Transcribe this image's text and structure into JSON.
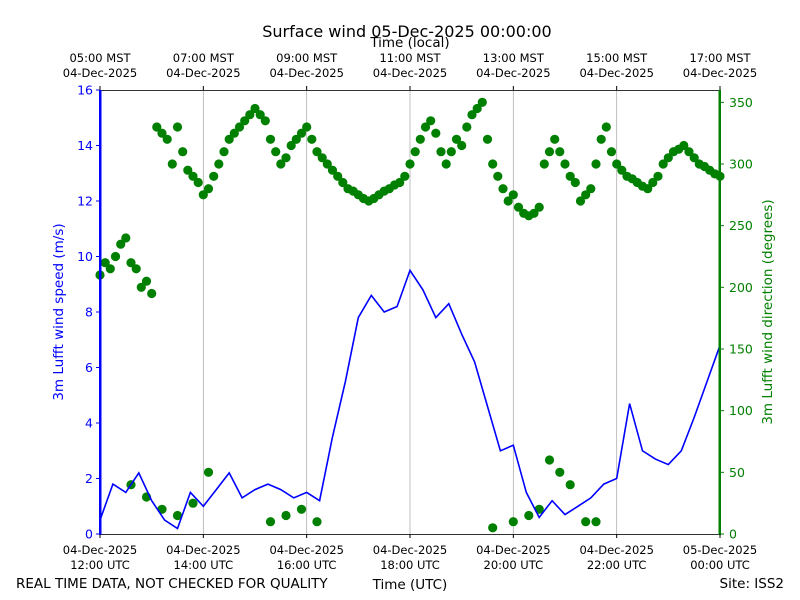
{
  "chart_data": {
    "type": "line+scatter",
    "title": "Surface wind 05-Dec-2025 00:00:00",
    "top_axis_label": "Time (local)",
    "xlabel": "Time (UTC)",
    "ylabel_left": "3m Lufft wind speed (m/s)",
    "ylabel_right": "3m Lufft wind direction (degrees)",
    "footer_left": "REAL TIME DATA, NOT CHECKED FOR QUALITY",
    "footer_right": "Site: ISS2",
    "x_range_hours": [
      0,
      12
    ],
    "ylim_left": [
      0,
      16
    ],
    "ylim_right": [
      0,
      360
    ],
    "left_ticks": [
      "0",
      "2",
      "4",
      "6",
      "8",
      "10",
      "12",
      "14",
      "16"
    ],
    "right_ticks": [
      "0",
      "50",
      "100",
      "150",
      "200",
      "250",
      "300",
      "350"
    ],
    "bottom_ticks": [
      {
        "h": 0,
        "date": "04-Dec-2025",
        "time": "12:00 UTC"
      },
      {
        "h": 2,
        "date": "04-Dec-2025",
        "time": "14:00 UTC"
      },
      {
        "h": 4,
        "date": "04-Dec-2025",
        "time": "16:00 UTC"
      },
      {
        "h": 6,
        "date": "04-Dec-2025",
        "time": "18:00 UTC"
      },
      {
        "h": 8,
        "date": "04-Dec-2025",
        "time": "20:00 UTC"
      },
      {
        "h": 10,
        "date": "04-Dec-2025",
        "time": "22:00 UTC"
      },
      {
        "h": 12,
        "date": "05-Dec-2025",
        "time": "00:00 UTC"
      }
    ],
    "top_ticks": [
      {
        "h": 0,
        "time": "05:00 MST",
        "date": "04-Dec-2025"
      },
      {
        "h": 2,
        "time": "07:00 MST",
        "date": "04-Dec-2025"
      },
      {
        "h": 4,
        "time": "09:00 MST",
        "date": "04-Dec-2025"
      },
      {
        "h": 6,
        "time": "11:00 MST",
        "date": "04-Dec-2025"
      },
      {
        "h": 8,
        "time": "13:00 MST",
        "date": "04-Dec-2025"
      },
      {
        "h": 10,
        "time": "15:00 MST",
        "date": "04-Dec-2025"
      },
      {
        "h": 12,
        "time": "17:00 MST",
        "date": "04-Dec-2025"
      }
    ],
    "colors": {
      "speed": "#0000ff",
      "direction": "#008000",
      "grid": "#b0b0b0"
    },
    "series": [
      {
        "name": "3m Lufft wind speed (m/s)",
        "kind": "line",
        "x_hours": [
          0.0,
          0.25,
          0.5,
          0.75,
          1.0,
          1.25,
          1.5,
          1.75,
          2.0,
          2.25,
          2.5,
          2.75,
          3.0,
          3.25,
          3.5,
          3.75,
          4.0,
          4.25,
          4.5,
          4.75,
          5.0,
          5.25,
          5.5,
          5.75,
          6.0,
          6.25,
          6.5,
          6.75,
          7.0,
          7.25,
          7.5,
          7.75,
          8.0,
          8.25,
          8.5,
          8.75,
          9.0,
          9.25,
          9.5,
          9.75,
          10.0,
          10.25,
          10.5,
          10.75,
          11.0,
          11.25,
          11.5,
          11.75,
          12.0
        ],
        "values": [
          0.5,
          1.8,
          1.5,
          2.2,
          1.2,
          0.5,
          0.2,
          1.5,
          1.0,
          1.6,
          2.2,
          1.3,
          1.6,
          1.8,
          1.6,
          1.3,
          1.5,
          1.2,
          3.5,
          5.5,
          7.8,
          8.6,
          8.0,
          8.2,
          9.5,
          8.8,
          7.8,
          8.3,
          7.2,
          6.2,
          4.6,
          3.0,
          3.2,
          1.5,
          0.6,
          1.2,
          0.7,
          1.0,
          1.3,
          1.8,
          2.0,
          4.7,
          3.0,
          2.7,
          2.5,
          3.0,
          4.2,
          5.5,
          6.8
        ]
      },
      {
        "name": "3m Lufft wind direction (degrees)",
        "kind": "scatter",
        "x_hours": [
          0.0,
          0.1,
          0.2,
          0.3,
          0.4,
          0.5,
          0.6,
          0.7,
          0.8,
          0.9,
          1.0,
          1.1,
          1.2,
          1.3,
          1.4,
          1.5,
          1.6,
          1.7,
          1.8,
          1.9,
          2.0,
          2.1,
          2.2,
          2.3,
          2.4,
          2.5,
          2.6,
          2.7,
          2.8,
          2.9,
          3.0,
          3.1,
          3.2,
          3.3,
          3.4,
          3.5,
          3.6,
          3.7,
          3.8,
          3.9,
          4.0,
          4.1,
          4.2,
          4.3,
          4.4,
          4.5,
          4.6,
          4.7,
          4.8,
          4.9,
          5.0,
          5.1,
          5.2,
          5.3,
          5.4,
          5.5,
          5.6,
          5.7,
          5.8,
          5.9,
          6.0,
          6.1,
          6.2,
          6.3,
          6.4,
          6.5,
          6.6,
          6.7,
          6.8,
          6.9,
          7.0,
          7.1,
          7.2,
          7.3,
          7.4,
          7.5,
          7.6,
          7.7,
          7.8,
          7.9,
          8.0,
          8.1,
          8.2,
          8.3,
          8.4,
          8.5,
          8.6,
          8.7,
          8.8,
          8.9,
          9.0,
          9.1,
          9.2,
          9.3,
          9.4,
          9.5,
          9.6,
          9.7,
          9.8,
          9.9,
          10.0,
          10.1,
          10.2,
          10.3,
          10.4,
          10.5,
          10.6,
          10.7,
          10.8,
          10.9,
          11.0,
          11.1,
          11.2,
          11.3,
          11.4,
          11.5,
          11.6,
          11.7,
          11.8,
          11.9,
          12.0,
          0.6,
          0.9,
          1.2,
          1.5,
          1.8,
          2.1,
          3.3,
          3.6,
          3.9,
          4.2,
          7.6,
          8.0,
          8.3,
          8.5,
          8.7,
          8.9,
          9.1,
          9.4,
          9.6
        ],
        "values": [
          210,
          220,
          215,
          225,
          235,
          240,
          220,
          215,
          200,
          205,
          195,
          330,
          325,
          320,
          300,
          330,
          310,
          295,
          290,
          285,
          275,
          280,
          290,
          300,
          310,
          320,
          325,
          330,
          335,
          340,
          345,
          340,
          335,
          320,
          310,
          300,
          305,
          315,
          320,
          325,
          330,
          320,
          310,
          305,
          300,
          295,
          290,
          285,
          280,
          278,
          275,
          272,
          270,
          272,
          275,
          278,
          280,
          283,
          285,
          290,
          300,
          310,
          320,
          330,
          335,
          325,
          310,
          300,
          310,
          320,
          315,
          330,
          340,
          345,
          350,
          320,
          300,
          290,
          280,
          270,
          275,
          265,
          260,
          258,
          260,
          265,
          300,
          310,
          320,
          310,
          300,
          290,
          285,
          270,
          275,
          280,
          300,
          320,
          330,
          310,
          300,
          295,
          290,
          288,
          285,
          282,
          280,
          285,
          290,
          300,
          305,
          310,
          312,
          315,
          310,
          305,
          300,
          298,
          295,
          292,
          290,
          40,
          30,
          20,
          15,
          25,
          50,
          10,
          15,
          20,
          10,
          5,
          10,
          15,
          20,
          60,
          50,
          40,
          10,
          10
        ]
      }
    ]
  }
}
